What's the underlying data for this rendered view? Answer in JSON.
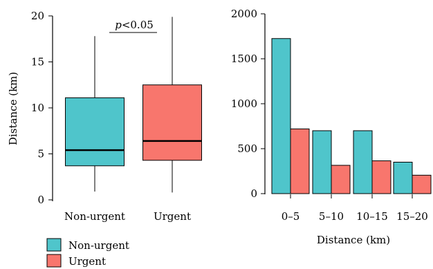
{
  "colors": {
    "non_urgent": "#4FC5CB",
    "urgent": "#F8766D",
    "stroke": "#000000"
  },
  "legend": {
    "items": [
      {
        "label": "Non-urgent",
        "color": "#4FC5CB"
      },
      {
        "label": "Urgent",
        "color": "#F8766D"
      }
    ]
  },
  "chart_data": [
    {
      "type": "box",
      "title": "",
      "ylabel": "Distance (km)",
      "xlabel": "",
      "ylim": [
        0,
        20
      ],
      "yticks": [
        0,
        5,
        10,
        15,
        20
      ],
      "categories": [
        "Non-urgent",
        "Urgent"
      ],
      "boxes": [
        {
          "name": "Non-urgent",
          "min": 0.9,
          "q1": 3.7,
          "median": 5.4,
          "q3": 11.1,
          "max": 17.8
        },
        {
          "name": "Urgent",
          "min": 0.8,
          "q1": 4.3,
          "median": 6.4,
          "q3": 12.5,
          "max": 19.9
        }
      ],
      "annotation": {
        "italic": "p",
        "text": "<0.05"
      },
      "grid": false
    },
    {
      "type": "bar",
      "title": "",
      "xlabel": "Distance (km)",
      "ylabel": "",
      "ylim": [
        0,
        2000
      ],
      "yticks": [
        0,
        500,
        1000,
        1500,
        2000
      ],
      "categories": [
        "0–5",
        "5–10",
        "10–15",
        "15–20"
      ],
      "series": [
        {
          "name": "Non-urgent",
          "values": [
            1725,
            700,
            700,
            350
          ]
        },
        {
          "name": "Urgent",
          "values": [
            720,
            315,
            365,
            205
          ]
        }
      ],
      "grid": false
    }
  ]
}
